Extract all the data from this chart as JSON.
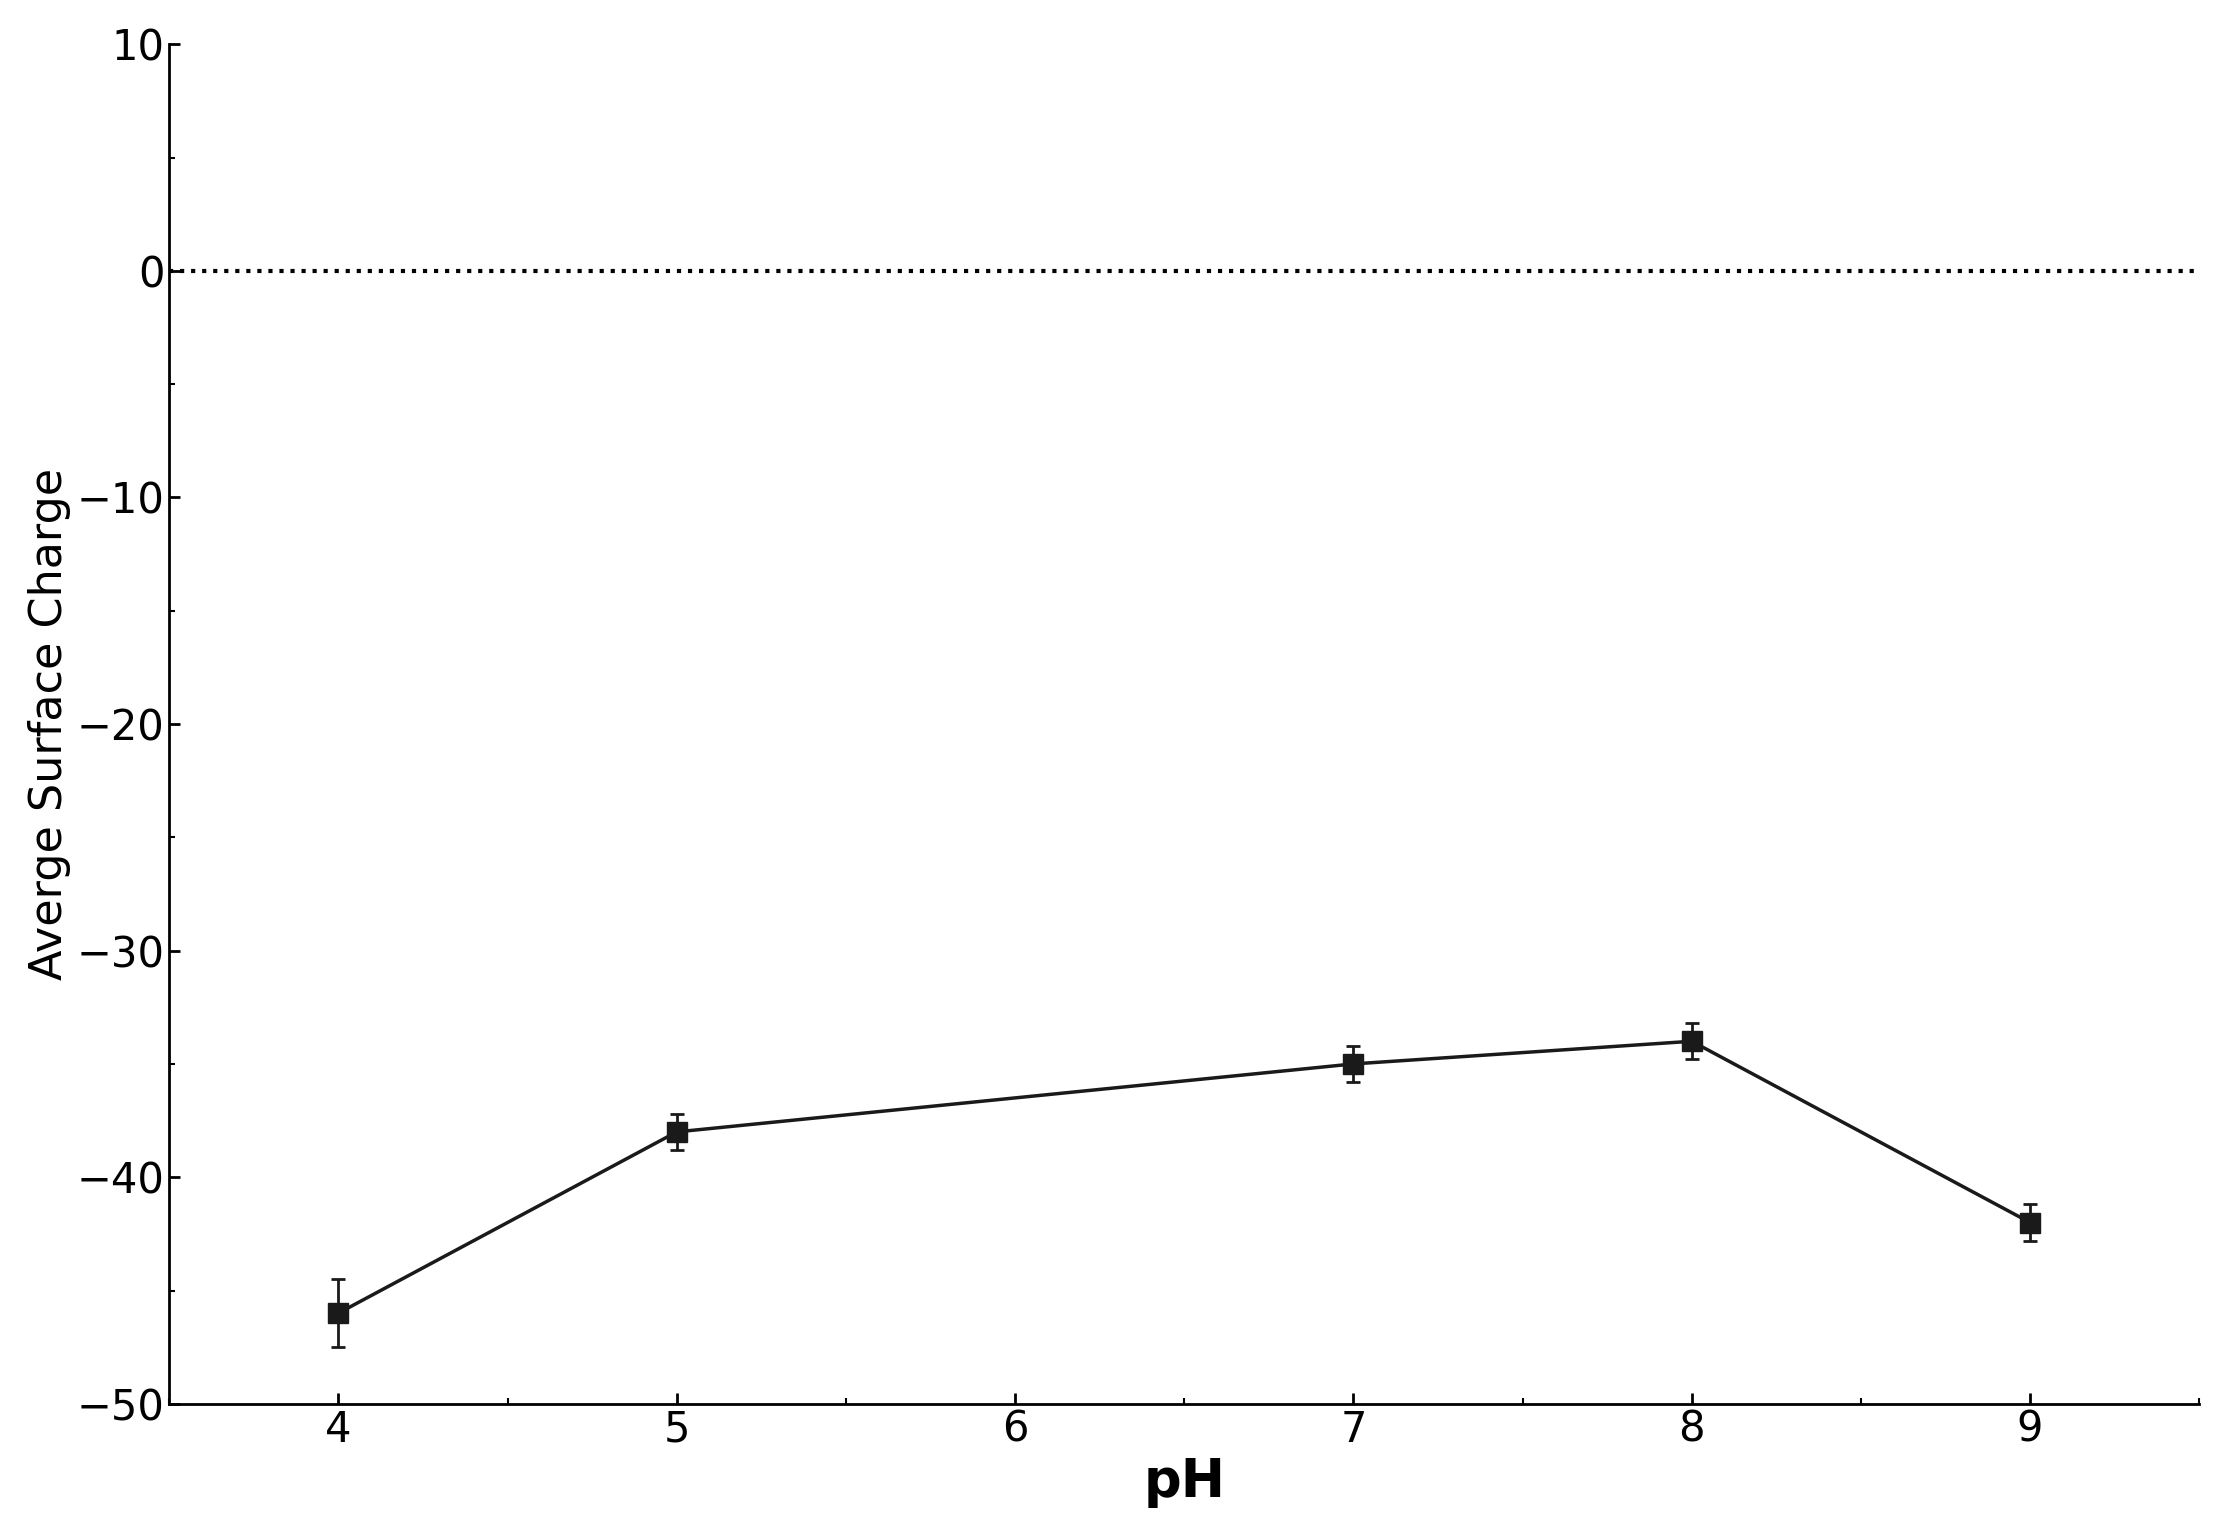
{
  "x": [
    4,
    5,
    7,
    8,
    9
  ],
  "y": [
    -46.0,
    -38.0,
    -35.0,
    -34.0,
    -42.0
  ],
  "yerr": [
    1.5,
    0.8,
    0.8,
    0.8,
    0.8
  ],
  "xlabel": "pH",
  "ylabel": "Averge Surface Charge",
  "xlim": [
    3.5,
    9.5
  ],
  "ylim": [
    -50,
    10
  ],
  "yticks": [
    -50,
    -40,
    -30,
    -20,
    -10,
    0,
    10
  ],
  "xticks": [
    4,
    5,
    6,
    7,
    8,
    9
  ],
  "hline_y": 0,
  "line_color": "#1a1a1a",
  "marker": "s",
  "markersize": 14,
  "linewidth": 2.5,
  "capsize": 5,
  "background_color": "#ffffff",
  "xlabel_fontsize": 38,
  "ylabel_fontsize": 32,
  "tick_fontsize": 30,
  "xlabel_fontweight": "bold",
  "ylabel_fontweight": "normal"
}
